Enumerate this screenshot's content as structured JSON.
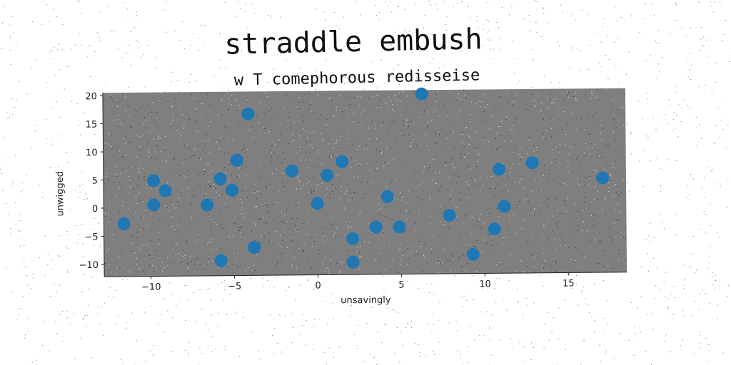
{
  "chart_data": {
    "type": "scatter",
    "title": "straddle embush",
    "subtitle": "w T comephorous redisseise",
    "xlabel": "unsavingly",
    "ylabel": "unwigged",
    "xlim": [
      -12.8,
      18.5
    ],
    "ylim": [
      -12.2,
      20.5
    ],
    "xticks": [
      -10,
      -5,
      0,
      5,
      10,
      15
    ],
    "yticks": [
      -10,
      -5,
      0,
      5,
      10,
      15,
      20
    ],
    "grid": false,
    "marker_color": "#1f77b4",
    "plot_background": "#7f7f7f",
    "series": [
      {
        "points": [
          {
            "x": -11.6,
            "y": -2.8
          },
          {
            "x": -9.8,
            "y": 4.8
          },
          {
            "x": -9.8,
            "y": 0.5
          },
          {
            "x": -9.1,
            "y": 3.0
          },
          {
            "x": -6.6,
            "y": 0.4
          },
          {
            "x": -5.8,
            "y": 5.0
          },
          {
            "x": -5.8,
            "y": -9.5
          },
          {
            "x": -5.1,
            "y": 3.0
          },
          {
            "x": -4.8,
            "y": 8.3
          },
          {
            "x": -4.1,
            "y": 16.5
          },
          {
            "x": -3.8,
            "y": -7.2
          },
          {
            "x": -1.5,
            "y": 6.3
          },
          {
            "x": 0.0,
            "y": 0.5
          },
          {
            "x": 0.6,
            "y": 5.5
          },
          {
            "x": 1.5,
            "y": 7.9
          },
          {
            "x": 2.1,
            "y": -5.8
          },
          {
            "x": 2.1,
            "y": -10.0
          },
          {
            "x": 3.5,
            "y": -3.8
          },
          {
            "x": 4.2,
            "y": 1.6
          },
          {
            "x": 4.9,
            "y": -3.8
          },
          {
            "x": 6.3,
            "y": 19.8
          },
          {
            "x": 7.9,
            "y": -1.8
          },
          {
            "x": 9.3,
            "y": -8.8
          },
          {
            "x": 10.6,
            "y": -4.3
          },
          {
            "x": 10.9,
            "y": 6.3
          },
          {
            "x": 11.2,
            "y": -0.3
          },
          {
            "x": 12.9,
            "y": 7.4
          },
          {
            "x": 17.1,
            "y": 4.6
          }
        ]
      }
    ]
  }
}
